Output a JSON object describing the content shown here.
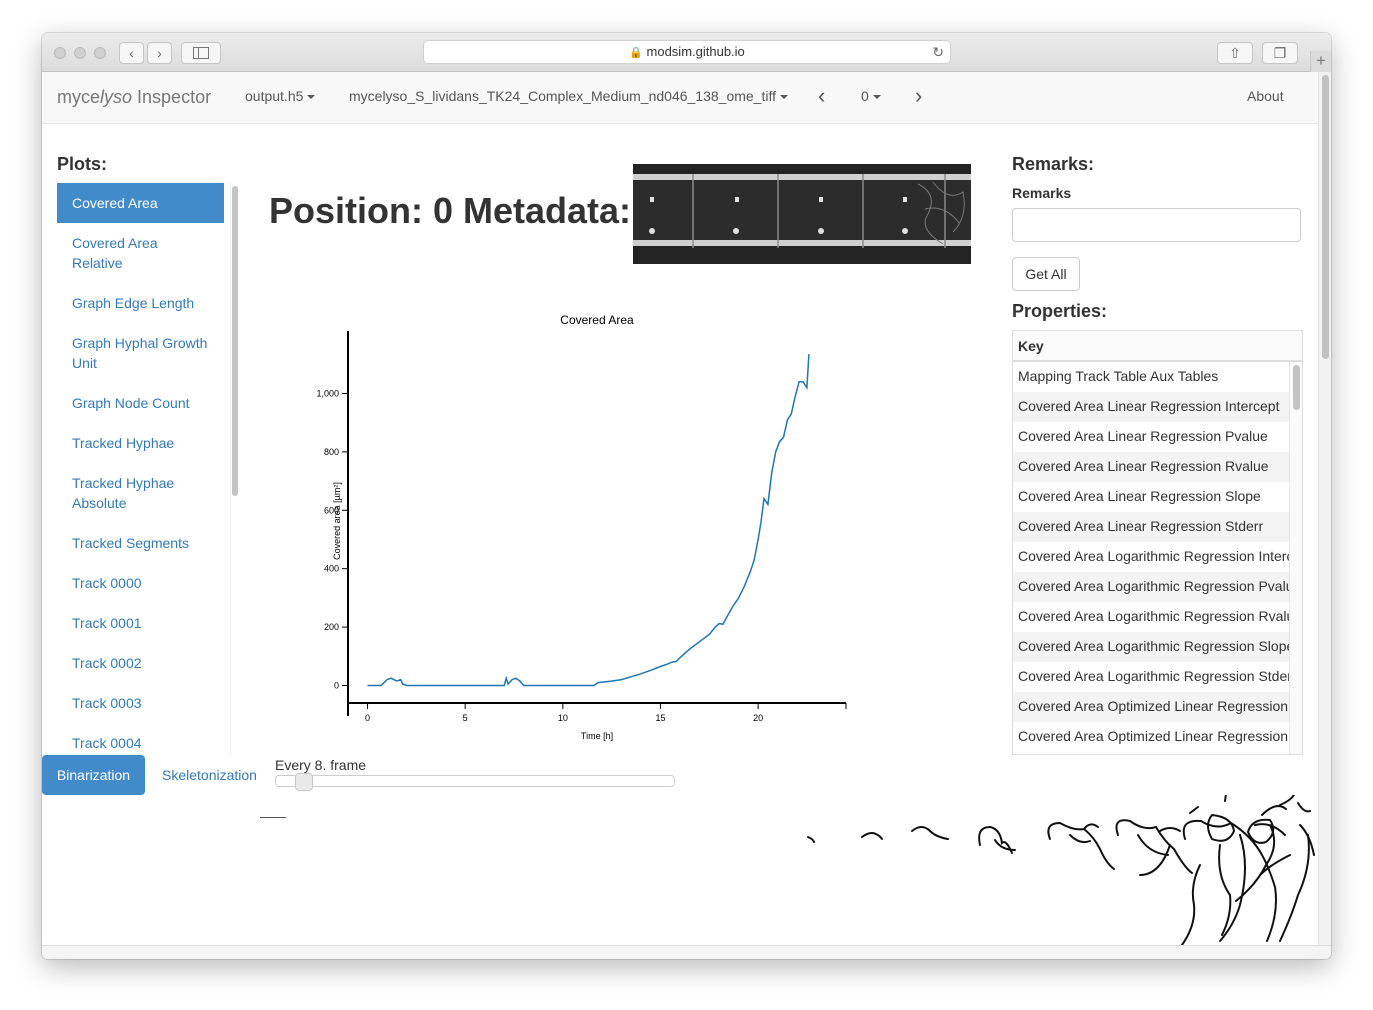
{
  "browser": {
    "url": "modsim.github.io"
  },
  "navbar": {
    "brand_prefix": "myce",
    "brand_italic": "lyso",
    "brand_suffix": " Inspector",
    "file": "output.h5",
    "dataset": "mycelyso_S_lividans_TK24_Complex_Medium_nd046_138_ome_tiff",
    "prev_label": "‹",
    "position": "0",
    "next_label": "›",
    "about": "About"
  },
  "plots": {
    "heading": "Plots:",
    "items": [
      "Covered Area",
      "Covered Area Relative",
      "Graph Edge Length",
      "Graph Hyphal Growth Unit",
      "Graph Node Count",
      "Tracked Hyphae",
      "Tracked Hyphae Absolute",
      "Tracked Segments",
      "Track 0000",
      "Track 0001",
      "Track 0002",
      "Track 0003",
      "Track 0004"
    ],
    "active_index": 0
  },
  "main": {
    "heading": "Position: 0 Metadata:"
  },
  "chart_data": {
    "type": "line",
    "title": "Covered Area",
    "xlabel": "Time [h]",
    "ylabel": "Covered area [µm²]",
    "xlim": [
      -1,
      24.5
    ],
    "ylim": [
      -60,
      1190
    ],
    "xticks": [
      0,
      5,
      10,
      15,
      20
    ],
    "yticks": [
      0,
      200,
      400,
      600,
      800,
      1000
    ],
    "ytick_labels": [
      "0",
      "200",
      "400",
      "600",
      "800",
      "1,000"
    ],
    "color": "#1f77b4",
    "series": [
      {
        "x": [
          0,
          0.7,
          1.0,
          1.2,
          1.5,
          1.7,
          1.8,
          2.0,
          3,
          4,
          5,
          6,
          7.0,
          7.1,
          7.2,
          7.4,
          7.6,
          7.8,
          8.0,
          9,
          10,
          11,
          11.6,
          11.8,
          12.5,
          13,
          13.5,
          14,
          14.5,
          15,
          15.3,
          15.6,
          15.8,
          16.0,
          16.5,
          17,
          17.5,
          17.8,
          18.0,
          18.2,
          18.4,
          18.7,
          19.0,
          19.3,
          19.6,
          19.8,
          20.0,
          20.15,
          20.3,
          20.5,
          20.7,
          20.9,
          21.1,
          21.3,
          21.5,
          21.7,
          21.9,
          22.1,
          22.3,
          22.5,
          22.6
        ],
        "y": [
          0,
          0,
          20,
          25,
          15,
          20,
          5,
          0,
          0,
          0,
          0,
          0,
          0,
          25,
          5,
          20,
          25,
          15,
          0,
          0,
          0,
          0,
          0,
          10,
          15,
          20,
          30,
          40,
          52,
          65,
          72,
          80,
          82,
          95,
          125,
          150,
          175,
          200,
          212,
          210,
          235,
          270,
          300,
          340,
          390,
          430,
          500,
          560,
          640,
          620,
          730,
          800,
          835,
          850,
          910,
          930,
          990,
          1040,
          1040,
          1020,
          1135
        ]
      }
    ]
  },
  "remarks": {
    "heading": "Remarks:",
    "label": "Remarks",
    "value": "",
    "get_all": "Get All"
  },
  "properties": {
    "heading": "Properties:",
    "column": "Key",
    "rows": [
      "Mapping Track Table Aux Tables",
      "Covered Area Linear Regression Intercept",
      "Covered Area Linear Regression Pvalue",
      "Covered Area Linear Regression Rvalue",
      "Covered Area Linear Regression Slope",
      "Covered Area Linear Regression Stderr",
      "Covered Area Logarithmic Regression Intercept",
      "Covered Area Logarithmic Regression Pvalue",
      "Covered Area Logarithmic Regression Rvalue",
      "Covered Area Logarithmic Regression Slope",
      "Covered Area Logarithmic Regression Stderr",
      "Covered Area Optimized Linear Regression",
      "Covered Area Optimized Linear Regression"
    ]
  },
  "bottom": {
    "tab_binarization": "Binarization",
    "tab_skeletonization": "Skeletonization",
    "frame_label": "Every 8. frame",
    "frame_step": 8
  }
}
